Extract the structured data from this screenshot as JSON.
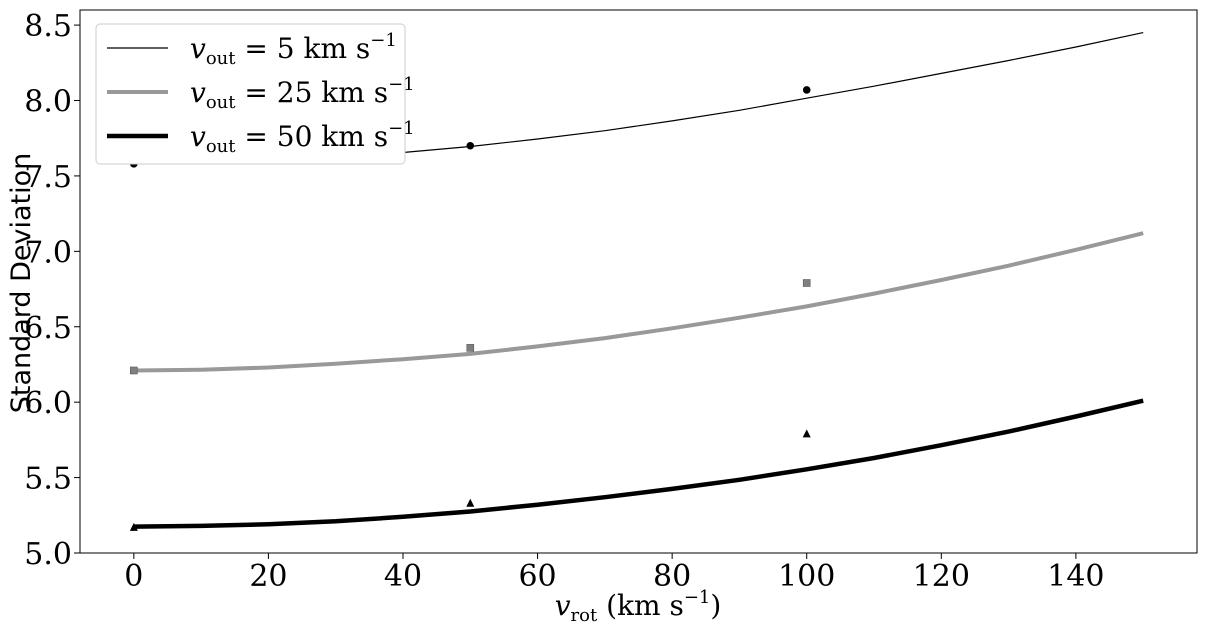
{
  "chart_data": {
    "type": "line",
    "xlabel_base": "v",
    "xlabel_sub": "rot",
    "xlabel_unit_open": " (km s",
    "xlabel_unit_exp": "−1",
    "xlabel_unit_close": ")",
    "ylabel": "Standard Deviation",
    "xlim": [
      -8,
      158
    ],
    "ylim": [
      5.0,
      8.6
    ],
    "xticks": [
      0,
      20,
      40,
      60,
      80,
      100,
      120,
      140
    ],
    "yticks": [
      5.0,
      5.5,
      6.0,
      6.5,
      7.0,
      7.5,
      8.0,
      8.5
    ],
    "grid": false,
    "legend_position": "upper-left",
    "series": [
      {
        "name_base": "v",
        "name_sub": "out",
        "name_rest": " = 5 km s",
        "name_exp": "−1",
        "color": "#000000",
        "line_style": "thin",
        "marker": "circle",
        "curve": {
          "x": [
            0,
            10,
            20,
            30,
            40,
            50,
            60,
            70,
            80,
            90,
            100,
            110,
            120,
            130,
            140,
            150
          ],
          "y": [
            7.58,
            7.585,
            7.6,
            7.625,
            7.655,
            7.695,
            7.745,
            7.8,
            7.865,
            7.935,
            8.015,
            8.095,
            8.18,
            8.265,
            8.355,
            8.45
          ]
        },
        "points": {
          "x": [
            0,
            50,
            100
          ],
          "y": [
            7.58,
            7.7,
            8.07
          ]
        }
      },
      {
        "name_base": "v",
        "name_sub": "out",
        "name_rest": " = 25 km s",
        "name_exp": "−1",
        "color": "#999999",
        "line_style": "medium",
        "marker": "square",
        "curve": {
          "x": [
            0,
            10,
            20,
            30,
            40,
            50,
            60,
            70,
            80,
            90,
            100,
            110,
            120,
            130,
            140,
            150
          ],
          "y": [
            6.21,
            6.215,
            6.23,
            6.255,
            6.285,
            6.32,
            6.37,
            6.425,
            6.49,
            6.56,
            6.635,
            6.72,
            6.81,
            6.905,
            7.01,
            7.12
          ]
        },
        "points": {
          "x": [
            0,
            50,
            100
          ],
          "y": [
            6.21,
            6.36,
            6.79
          ]
        }
      },
      {
        "name_base": "v",
        "name_sub": "out",
        "name_rest": " = 50 km s",
        "name_exp": "−1",
        "color": "#000000",
        "line_style": "thick",
        "marker": "triangle",
        "curve": {
          "x": [
            0,
            10,
            20,
            30,
            40,
            50,
            60,
            70,
            80,
            90,
            100,
            110,
            120,
            130,
            140,
            150
          ],
          "y": [
            5.175,
            5.18,
            5.19,
            5.21,
            5.24,
            5.275,
            5.32,
            5.37,
            5.425,
            5.485,
            5.555,
            5.63,
            5.715,
            5.805,
            5.905,
            6.01
          ]
        },
        "points": {
          "x": [
            0,
            50,
            100
          ],
          "y": [
            5.17,
            5.33,
            5.79
          ]
        }
      }
    ]
  }
}
